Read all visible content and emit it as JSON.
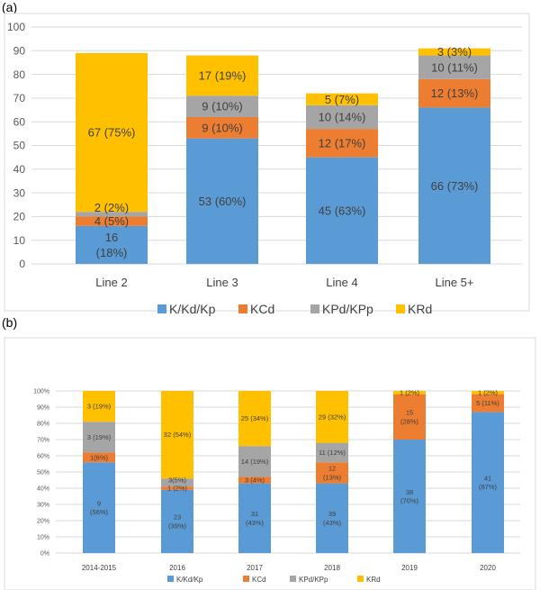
{
  "panel_labels": [
    "(a)",
    "(b)"
  ],
  "colors": {
    "K/Kd/Kp": "#5b9bd5",
    "KCd": "#ed7d31",
    "KPd/KPp": "#a5a5a5",
    "KRd": "#ffc000"
  },
  "chart_data": [
    {
      "type": "bar",
      "stacked": true,
      "title": "",
      "xlabel": "",
      "ylabel": "",
      "ylim": [
        0,
        100
      ],
      "yticks": [
        0,
        10,
        20,
        30,
        40,
        50,
        60,
        70,
        80,
        90,
        100
      ],
      "grid": true,
      "legend": "bottom",
      "categories": [
        "Line 2",
        "Line 3",
        "Line 4",
        "Line 5+"
      ],
      "series": [
        {
          "name": "K/Kd/Kp",
          "values": [
            16,
            53,
            45,
            66
          ],
          "labels": [
            "16|(18%)",
            "53 (60%)",
            "45 (63%)",
            "66 (73%)"
          ]
        },
        {
          "name": "KCd",
          "values": [
            4,
            9,
            12,
            12
          ],
          "labels": [
            "4 (5%)",
            "9 (10%)",
            "12 (17%)",
            "12 (13%)"
          ]
        },
        {
          "name": "KPd/KPp",
          "values": [
            2,
            9,
            10,
            10
          ],
          "labels": [
            "2 (2%)",
            "9 (10%)",
            "10 (14%)",
            "10 (11%)"
          ]
        },
        {
          "name": "KRd",
          "values": [
            67,
            17,
            5,
            3
          ],
          "labels": [
            "67 (75%)",
            "17 (19%)",
            "5 (7%)",
            "3 (3%)"
          ]
        }
      ]
    },
    {
      "type": "bar",
      "stacked": true,
      "percent": true,
      "title": "",
      "xlabel": "",
      "ylabel": "",
      "ylim": [
        0,
        100
      ],
      "yticks": [
        "0%",
        "10%",
        "20%",
        "30%",
        "40%",
        "50%",
        "60%",
        "70%",
        "80%",
        "90%",
        "100%"
      ],
      "grid": true,
      "legend": "bottom",
      "categories": [
        "2014-2015",
        "2016",
        "2017",
        "2018",
        "2019",
        "2020"
      ],
      "series": [
        {
          "name": "K/Kd/Kp",
          "values": [
            56,
            39,
            43,
            43,
            70,
            87
          ],
          "labels": [
            "9|(56%)",
            "23|(39%)",
            "31|(43%)",
            "39|(43%)",
            "38|(70%)",
            "41|(87%)"
          ]
        },
        {
          "name": "KCd",
          "values": [
            6,
            2,
            4,
            13,
            28,
            11
          ],
          "labels": [
            "1(6%)",
            "1 (2%)",
            "3 (4%)",
            "12|(13%)",
            "15|(28%)",
            "5 (11%)"
          ]
        },
        {
          "name": "KPd/KPp",
          "values": [
            19,
            5,
            19,
            12,
            0,
            0
          ],
          "labels": [
            "3 (19%)",
            "3(5%)",
            "14 (19%)",
            "11 (12%)",
            "",
            ""
          ]
        },
        {
          "name": "KRd",
          "values": [
            19,
            54,
            34,
            32,
            2,
            2
          ],
          "labels": [
            "3 (19%)",
            "32 (54%)",
            "25 (34%)",
            "29 (32%)",
            "1 (2%)",
            "1 (2%)"
          ]
        }
      ]
    }
  ]
}
